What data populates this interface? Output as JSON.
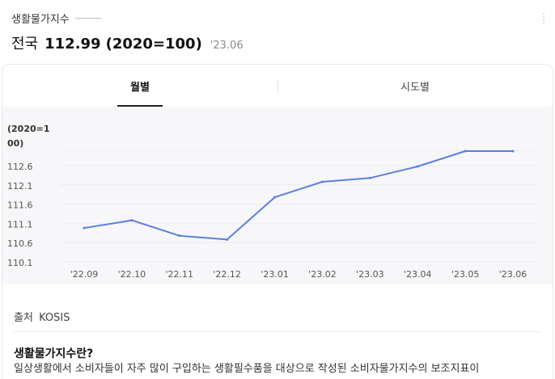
{
  "header": {
    "kicker": "생활물가지수",
    "region": "전국",
    "value": "112.99",
    "base": "(2020=100)",
    "date": "'23.06"
  },
  "tabs": [
    {
      "label": "월별",
      "active": true
    },
    {
      "label": "시도별",
      "active": false
    }
  ],
  "chart_data": {
    "type": "line",
    "y_unit_label_lines": [
      "(2020=1",
      "00)"
    ],
    "categories": [
      "'22.09",
      "'22.10",
      "'22.11",
      "'22.12",
      "'23.01",
      "'23.02",
      "'23.03",
      "'23.04",
      "'23.05",
      "'23.06"
    ],
    "series": [
      {
        "values": [
          111.0,
          111.2,
          110.8,
          110.7,
          111.8,
          112.2,
          112.3,
          112.6,
          113.0,
          113.0
        ],
        "color": "#5b7fe0"
      }
    ],
    "yticks": [
      "112.6",
      "112.1",
      "111.6",
      "111.1",
      "110.6",
      "110.1"
    ],
    "ylim": [
      110.1,
      113.0
    ],
    "grid": true
  },
  "footer": {
    "source_label": "출처",
    "source_name": "KOSIS",
    "desc_title": "생활물가지수란?",
    "desc_text": "일상생활에서 소비자들이 자주 많이 구입하는 생활필수품을 대상으로 작성된 소비자물가지수의 보조지표이"
  }
}
